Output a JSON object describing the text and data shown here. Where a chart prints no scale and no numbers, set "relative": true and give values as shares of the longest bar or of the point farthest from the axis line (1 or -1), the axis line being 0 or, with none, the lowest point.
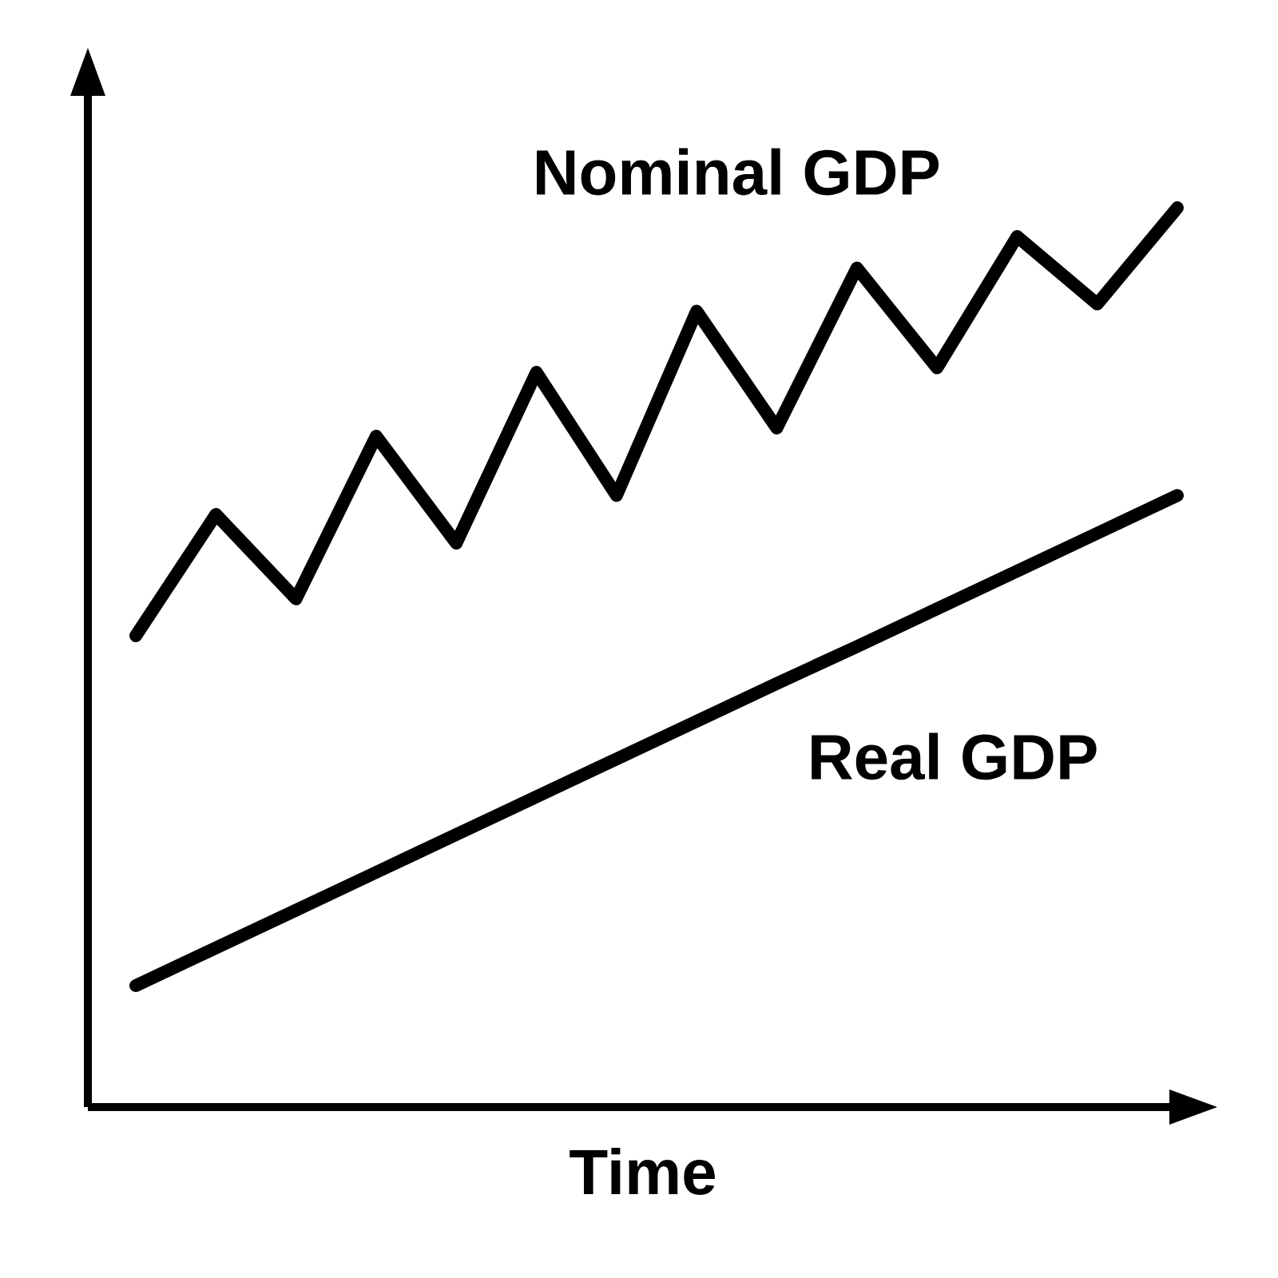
{
  "chart_data": {
    "type": "line",
    "relative": true,
    "xlabel": "Time",
    "line_style": "solid",
    "categories": [
      null,
      null,
      null,
      null,
      null,
      null,
      null,
      null,
      null,
      null,
      null,
      null,
      null,
      null
    ],
    "series": [
      {
        "name": "Nominal GDP",
        "color": "#000000",
        "values": [
          0.524,
          0.659,
          0.565,
          0.746,
          0.627,
          0.817,
          0.68,
          0.885,
          0.755,
          0.933,
          0.822,
          0.968,
          0.893,
          1.0
        ]
      },
      {
        "name": "Real GDP",
        "color": "#000000",
        "values": [
          0.135,
          0.177,
          0.219,
          0.261,
          0.303,
          0.345,
          0.387,
          0.429,
          0.471,
          0.512,
          0.554,
          0.596,
          0.638,
          0.68
        ]
      }
    ]
  }
}
